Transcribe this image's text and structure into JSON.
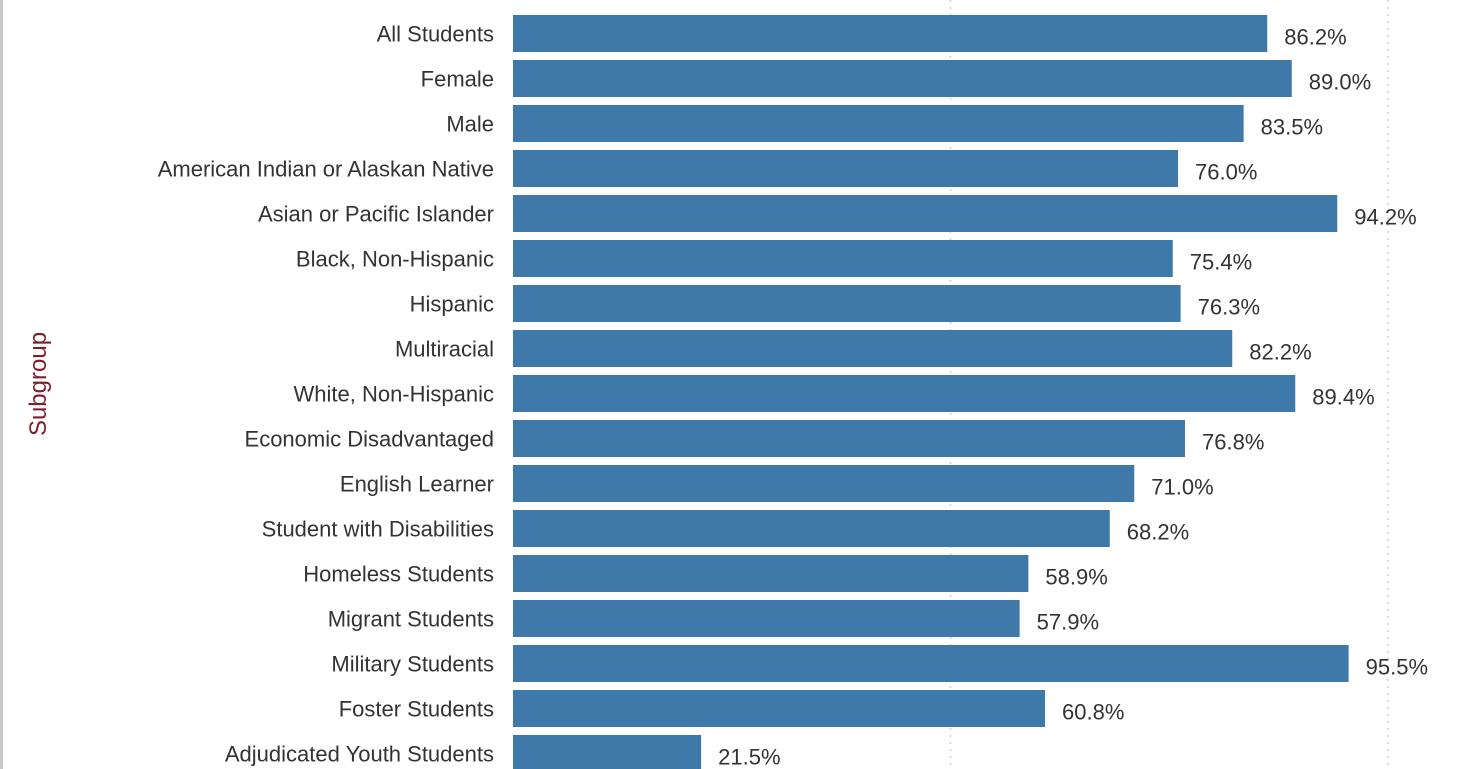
{
  "chart_data": {
    "type": "bar",
    "orientation": "horizontal",
    "ylabel": "Subgroup",
    "categories": [
      "All Students",
      "Female",
      "Male",
      "American Indian or Alaskan Native",
      "Asian or Pacific Islander",
      "Black, Non-Hispanic",
      "Hispanic",
      "Multiracial",
      "White, Non-Hispanic",
      "Economic Disadvantaged",
      "English Learner",
      "Student with Disabilities",
      "Homeless Students",
      "Migrant Students",
      "Military Students",
      "Foster Students",
      "Adjudicated Youth Students"
    ],
    "values": [
      86.2,
      89.0,
      83.5,
      76.0,
      94.2,
      75.4,
      76.3,
      82.2,
      89.4,
      76.8,
      71.0,
      68.2,
      58.9,
      57.9,
      95.5,
      60.8,
      21.5
    ],
    "value_labels": [
      "86.2%",
      "89.0%",
      "83.5%",
      "76.0%",
      "94.2%",
      "75.4%",
      "76.3%",
      "82.2%",
      "89.4%",
      "76.8%",
      "71.0%",
      "68.2%",
      "58.9%",
      "57.9%",
      "95.5%",
      "60.8%",
      "21.5%"
    ],
    "xlim": [
      0,
      100
    ],
    "gridlines_at": [
      50,
      100
    ],
    "grid": true,
    "bar_color": "#3e79a9"
  }
}
